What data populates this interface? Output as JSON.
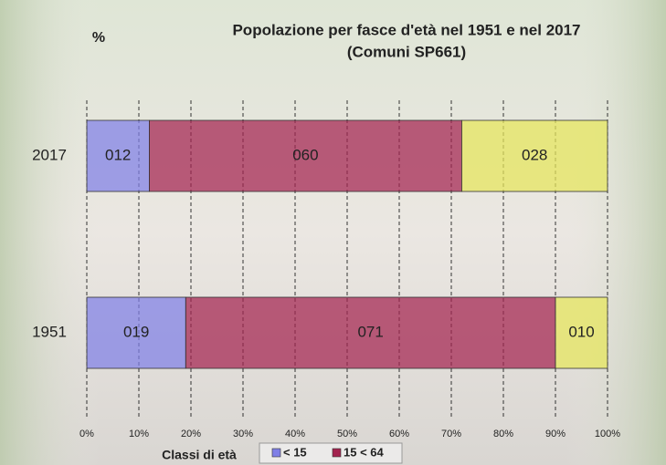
{
  "chart_data": {
    "type": "stacked-barh",
    "title": "Popolazione per fasce d'età nel 1951 e nel 2017",
    "subtitle": "(Comuni SP661)",
    "y_label": "%",
    "x_label": "Classi di età",
    "categories": [
      "2017",
      "1951"
    ],
    "series": [
      {
        "name": "< 15",
        "color": "#7f7fe6",
        "values": [
          12,
          19
        ],
        "value_labels": [
          "012",
          "019"
        ]
      },
      {
        "name": "15 < 64",
        "color": "#a3234f",
        "values": [
          60,
          71
        ],
        "value_labels": [
          "060",
          "071"
        ]
      },
      {
        "color": "#e6e65a",
        "values": [
          28,
          10
        ],
        "value_labels": [
          "028",
          "010"
        ]
      }
    ],
    "xlim": [
      0,
      100
    ],
    "xticks": [
      {
        "value": 0,
        "label": "0%"
      },
      {
        "value": 10,
        "label": "10%"
      },
      {
        "value": 20,
        "label": "20%"
      },
      {
        "value": 30,
        "label": "30%"
      },
      {
        "value": 40,
        "label": "40%"
      },
      {
        "value": 50,
        "label": "50%"
      },
      {
        "value": 60,
        "label": "60%"
      },
      {
        "value": 70,
        "label": "70%"
      },
      {
        "value": 80,
        "label": "80%"
      },
      {
        "value": 90,
        "label": "90%"
      },
      {
        "value": 100,
        "label": "100%"
      }
    ],
    "grid": true
  }
}
